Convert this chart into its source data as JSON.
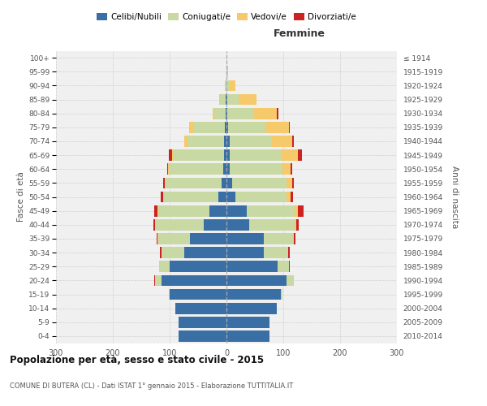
{
  "age_groups": [
    "0-4",
    "5-9",
    "10-14",
    "15-19",
    "20-24",
    "25-29",
    "30-34",
    "35-39",
    "40-44",
    "45-49",
    "50-54",
    "55-59",
    "60-64",
    "65-69",
    "70-74",
    "75-79",
    "80-84",
    "85-89",
    "90-94",
    "95-99",
    "100+"
  ],
  "birth_years": [
    "2010-2014",
    "2005-2009",
    "2000-2004",
    "1995-1999",
    "1990-1994",
    "1985-1989",
    "1980-1984",
    "1975-1979",
    "1970-1974",
    "1965-1969",
    "1960-1964",
    "1955-1959",
    "1950-1954",
    "1945-1949",
    "1940-1944",
    "1935-1939",
    "1930-1934",
    "1925-1929",
    "1920-1924",
    "1915-1919",
    "≤ 1914"
  ],
  "males_celibi": [
    85,
    84,
    90,
    100,
    115,
    100,
    75,
    65,
    40,
    30,
    15,
    9,
    6,
    5,
    4,
    3,
    2,
    1,
    0,
    0,
    0
  ],
  "males_coniugati": [
    0,
    0,
    0,
    2,
    10,
    18,
    40,
    55,
    85,
    90,
    95,
    98,
    95,
    88,
    65,
    55,
    20,
    10,
    3,
    0,
    0
  ],
  "males_vedovi": [
    0,
    0,
    0,
    0,
    1,
    0,
    0,
    1,
    1,
    2,
    2,
    2,
    2,
    3,
    5,
    8,
    3,
    2,
    0,
    0,
    0
  ],
  "males_divorziati": [
    0,
    0,
    0,
    0,
    1,
    1,
    2,
    2,
    3,
    5,
    4,
    3,
    2,
    5,
    0,
    0,
    0,
    0,
    0,
    0,
    0
  ],
  "females_nubili": [
    76,
    76,
    88,
    95,
    105,
    90,
    65,
    65,
    40,
    35,
    15,
    10,
    5,
    5,
    5,
    3,
    2,
    1,
    0,
    0,
    0
  ],
  "females_coniugate": [
    0,
    0,
    0,
    3,
    12,
    20,
    42,
    52,
    80,
    85,
    90,
    95,
    93,
    90,
    75,
    65,
    45,
    20,
    6,
    2,
    0
  ],
  "females_vedove": [
    0,
    0,
    0,
    0,
    1,
    0,
    1,
    1,
    3,
    5,
    8,
    10,
    15,
    30,
    35,
    42,
    42,
    32,
    10,
    1,
    0
  ],
  "females_divorziate": [
    0,
    0,
    0,
    0,
    0,
    1,
    3,
    3,
    4,
    10,
    4,
    4,
    3,
    8,
    3,
    2,
    2,
    0,
    0,
    0,
    0
  ],
  "color_celibi": "#3a6fa5",
  "color_coniugati": "#c8d9a3",
  "color_vedovi": "#f6c96b",
  "color_divorziati": "#cc2222",
  "title": "Popolazione per età, sesso e stato civile - 2015",
  "subtitle": "COMUNE DI BUTERA (CL) - Dati ISTAT 1° gennaio 2015 - Elaborazione TUTTITALIA.IT",
  "label_femmine": "Femmine",
  "ylabel_left": "Fasce di età",
  "ylabel_right": "Anni di nascita",
  "legend_labels": [
    "Celibi/Nubili",
    "Coniugati/e",
    "Vedovi/e",
    "Divorziati/e"
  ],
  "xlim": 300,
  "bg_color": "#f0f0f0",
  "grid_color": "#cccccc"
}
